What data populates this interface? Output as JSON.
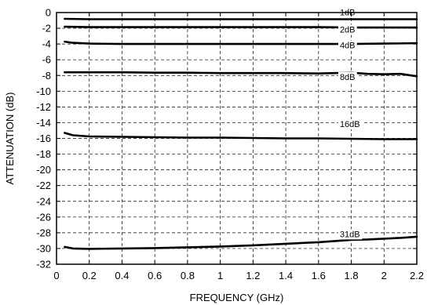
{
  "chart_data": {
    "type": "line",
    "title": "",
    "xlabel": "FREQUENCY (GHz)",
    "ylabel": "ATTENUATION (dB)",
    "xlim": [
      0,
      2.2
    ],
    "ylim": [
      -32,
      0
    ],
    "x_ticks": [
      "0",
      "0.2",
      "0.4",
      "0.6",
      "0.8",
      "1",
      "1.2",
      "1.4",
      "1.6",
      "1.8",
      "2",
      "2.2"
    ],
    "y_ticks": [
      "0",
      "-2",
      "-4",
      "-6",
      "-8",
      "-10",
      "-12",
      "-14",
      "-16",
      "-18",
      "-20",
      "-22",
      "-24",
      "-26",
      "-28",
      "-30",
      "-32"
    ],
    "grid": true,
    "grid_style": "dashed",
    "legend": "none",
    "line_color": "#000000",
    "series": [
      {
        "label": "1dB",
        "x": [
          0.05,
          0.2,
          0.4,
          0.6,
          0.8,
          1.0,
          1.2,
          1.4,
          1.6,
          1.8,
          2.0,
          2.2
        ],
        "values": [
          -0.8,
          -0.85,
          -0.85,
          -0.85,
          -0.85,
          -0.85,
          -0.85,
          -0.85,
          -0.85,
          -0.85,
          -0.85,
          -0.85
        ]
      },
      {
        "label": "2dB",
        "x": [
          0.05,
          0.2,
          0.4,
          0.6,
          0.8,
          1.0,
          1.2,
          1.4,
          1.6,
          1.8,
          2.0,
          2.2
        ],
        "values": [
          -1.8,
          -1.85,
          -1.85,
          -1.85,
          -1.85,
          -1.85,
          -1.85,
          -1.85,
          -1.85,
          -1.9,
          -1.9,
          -1.9
        ]
      },
      {
        "label": "4dB",
        "x": [
          0.05,
          0.1,
          0.2,
          0.4,
          0.6,
          0.8,
          1.0,
          1.2,
          1.4,
          1.6,
          1.8,
          2.0,
          2.2
        ],
        "values": [
          -3.7,
          -3.85,
          -3.95,
          -4.0,
          -4.0,
          -4.0,
          -4.0,
          -4.0,
          -4.0,
          -4.0,
          -4.0,
          -3.95,
          -3.9
        ]
      },
      {
        "label": "8dB",
        "x": [
          0.05,
          0.2,
          0.4,
          0.6,
          0.8,
          1.0,
          1.2,
          1.4,
          1.6,
          1.7,
          1.8,
          1.9,
          2.0,
          2.1,
          2.2
        ],
        "values": [
          -7.6,
          -7.6,
          -7.6,
          -7.65,
          -7.65,
          -7.7,
          -7.7,
          -7.7,
          -7.75,
          -7.7,
          -7.65,
          -7.8,
          -7.85,
          -7.8,
          -8.1
        ]
      },
      {
        "label": "16dB",
        "x": [
          0.05,
          0.1,
          0.2,
          0.4,
          0.6,
          0.8,
          1.0,
          1.2,
          1.4,
          1.6,
          1.8,
          2.0,
          2.2
        ],
        "values": [
          -15.3,
          -15.6,
          -15.75,
          -15.8,
          -15.85,
          -15.9,
          -15.9,
          -15.95,
          -16.0,
          -16.0,
          -16.05,
          -16.1,
          -16.1
        ]
      },
      {
        "label": "31dB",
        "x": [
          0.05,
          0.1,
          0.2,
          0.4,
          0.6,
          0.8,
          1.0,
          1.2,
          1.4,
          1.6,
          1.7,
          1.8,
          1.9,
          2.0,
          2.1,
          2.2
        ],
        "values": [
          -29.8,
          -30.0,
          -30.05,
          -30.0,
          -29.95,
          -29.85,
          -29.75,
          -29.6,
          -29.4,
          -29.2,
          -29.05,
          -28.9,
          -28.85,
          -28.75,
          -28.65,
          -28.5
        ]
      }
    ],
    "annotations": [
      {
        "text": "1dB",
        "x": 1.73,
        "y": -0.35
      },
      {
        "text": "2dB",
        "x": 1.73,
        "y": -2.55
      },
      {
        "text": "4dB",
        "x": 1.73,
        "y": -4.55
      },
      {
        "text": "8dB",
        "x": 1.73,
        "y": -8.55
      },
      {
        "text": "16dB",
        "x": 1.73,
        "y": -14.55
      },
      {
        "text": "31dB",
        "x": 1.73,
        "y": -28.55
      }
    ]
  }
}
